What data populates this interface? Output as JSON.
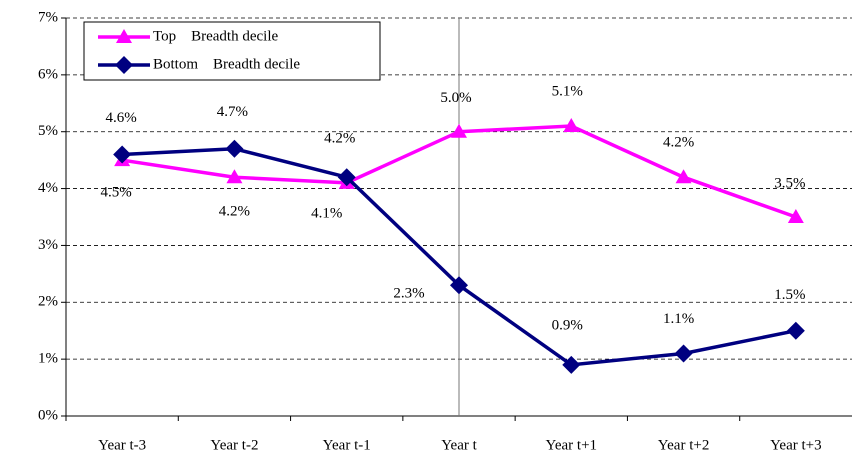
{
  "chart_data": {
    "type": "line",
    "categories": [
      "Year t-3",
      "Year t-2",
      "Year t-1",
      "Year t",
      "Year t+1",
      "Year t+2",
      "Year t+3"
    ],
    "series": [
      {
        "name": "Top    Breadth decile",
        "color": "#ff00ff",
        "marker": "triangle",
        "values": [
          4.5,
          4.2,
          4.1,
          5.0,
          5.1,
          4.2,
          3.5
        ],
        "value_labels": [
          "4.5%",
          "4.2%",
          "4.1%",
          "5.0%",
          "5.1%",
          "4.2%",
          "3.5%"
        ]
      },
      {
        "name": "Bottom    Breadth decile",
        "color": "#000080",
        "marker": "diamond",
        "values": [
          4.6,
          4.7,
          4.2,
          2.3,
          0.9,
          1.1,
          1.5
        ],
        "value_labels": [
          "4.6%",
          "4.7%",
          "4.2%",
          "2.3%",
          "0.9%",
          "1.1%",
          "1.5%"
        ]
      }
    ],
    "ylim": [
      0,
      7
    ],
    "yticks": [
      {
        "value": 0,
        "label": "0%"
      },
      {
        "value": 1,
        "label": "1%"
      },
      {
        "value": 2,
        "label": "2%"
      },
      {
        "value": 3,
        "label": "3%"
      },
      {
        "value": 4,
        "label": "4%"
      },
      {
        "value": 5,
        "label": "5%"
      },
      {
        "value": 6,
        "label": "6%"
      },
      {
        "value": 7,
        "label": "7%"
      }
    ],
    "grid": true,
    "legend": "upper left"
  }
}
